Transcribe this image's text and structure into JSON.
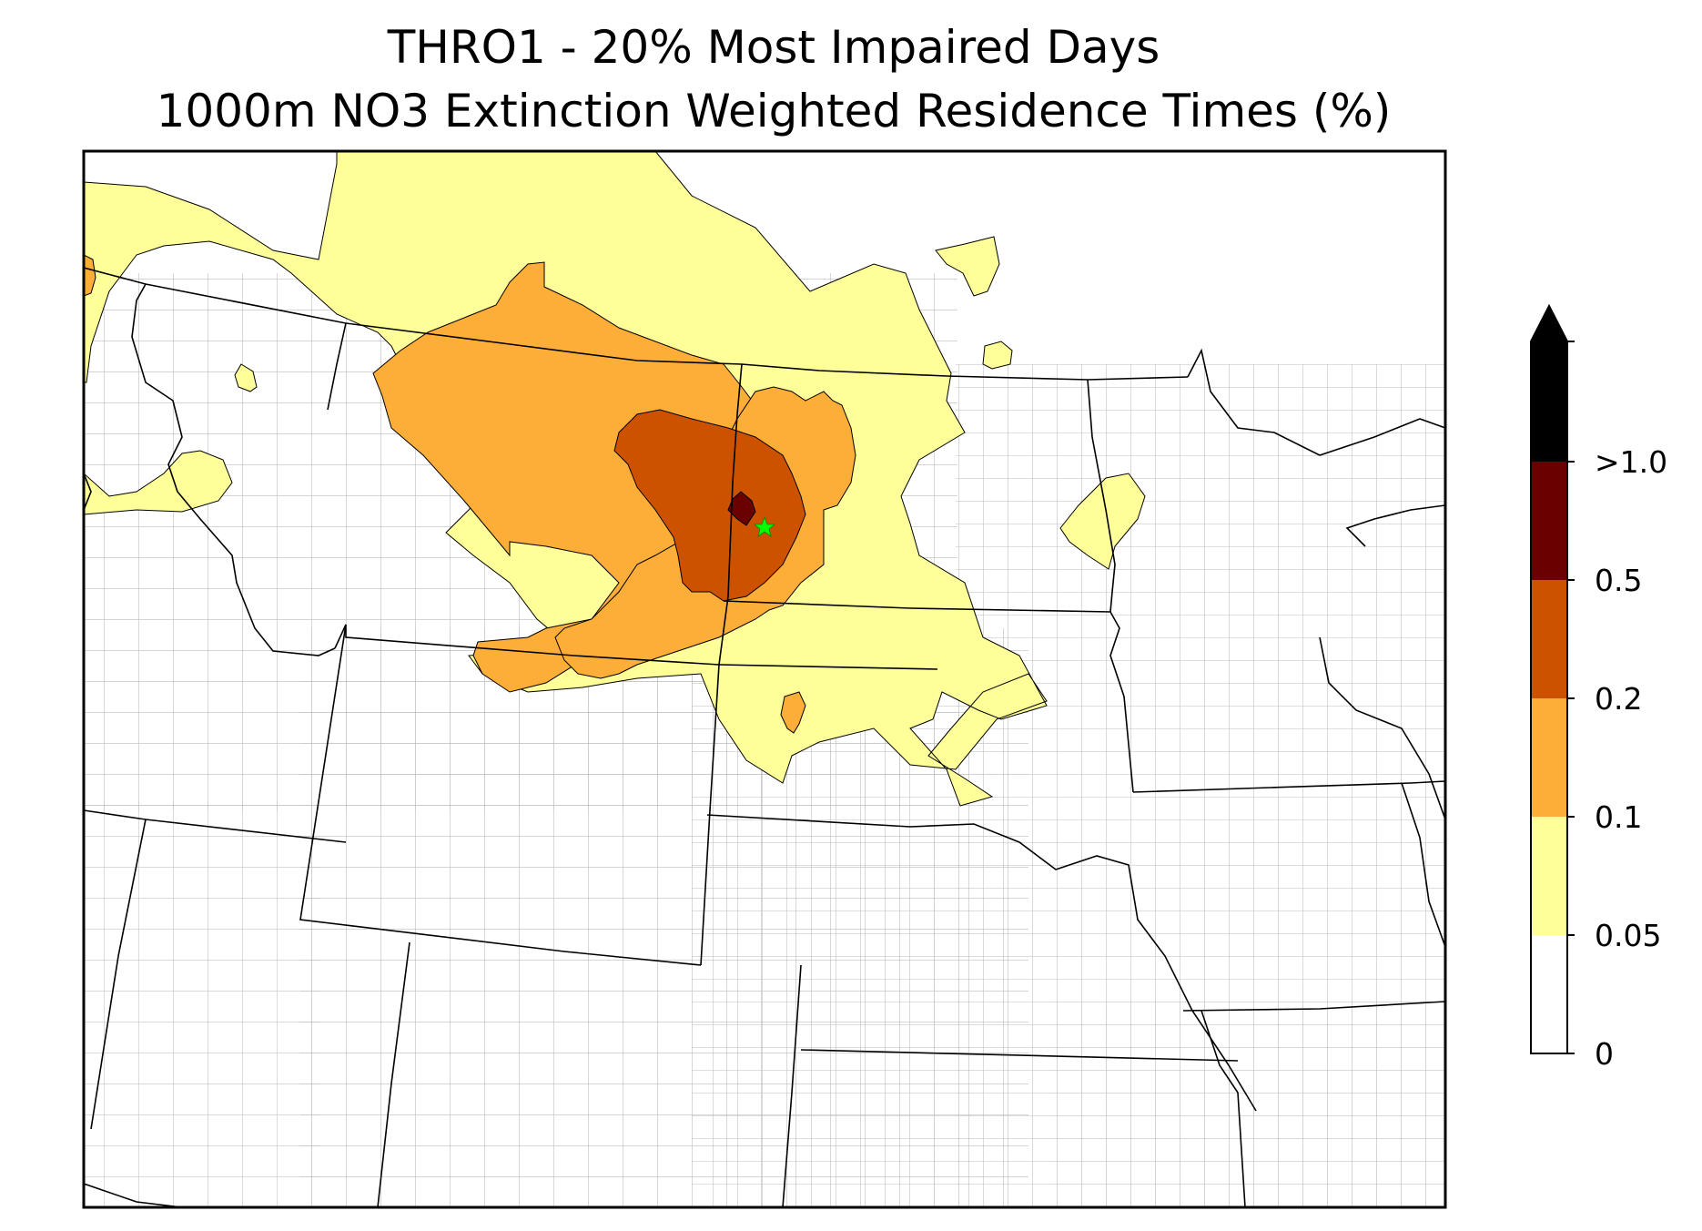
{
  "title": {
    "line1": "THRO1 - 20% Most Impaired Days",
    "line2": "1000m NO3 Extinction Weighted Residence Times (%)"
  },
  "colors": {
    "level_0_0.05": "#ffffff",
    "level_0.05_0.1": "#ffff99",
    "level_0.1_0.2": "#fdae38",
    "level_0.2_0.5": "#cc5200",
    "level_0.5_1.0": "#6b0000",
    "level_gt_1.0": "#000000",
    "state_lines": "#000000",
    "county_lines": "#aaaaaa",
    "site_marker": "#00ff00"
  },
  "colorbar": {
    "extend": "max",
    "ticks": [
      "0",
      "0.05",
      "0.1",
      "0.2",
      "0.5",
      ">1.0"
    ]
  },
  "site": {
    "marker": "star-icon"
  }
}
